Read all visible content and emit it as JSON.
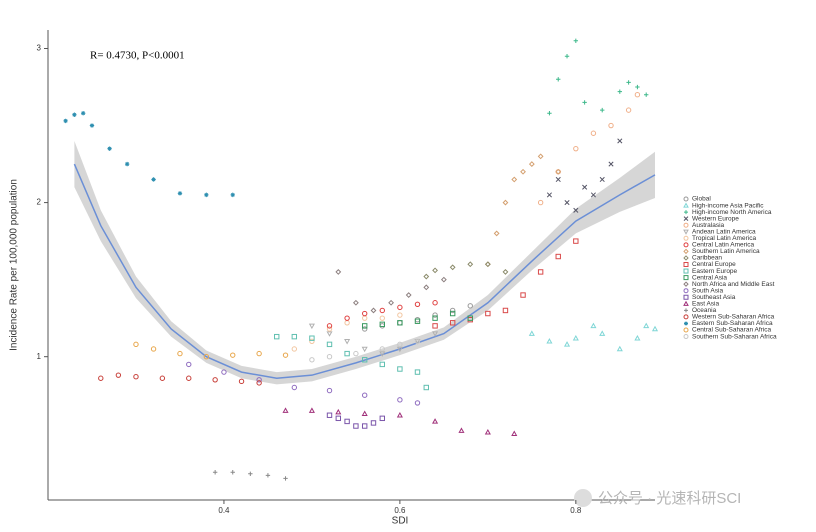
{
  "chart_data": {
    "type": "scatter",
    "annotation": "R= 0.4730, P<0.0001",
    "x_label": "SDI",
    "y_label": "Incidence Rate per 100,000 population",
    "watermark": "公众号 · 光速科研SCI",
    "xlim": [
      0.2,
      0.89
    ],
    "xticks": [
      {
        "value": 0.4,
        "label": "0.4"
      },
      {
        "value": 0.6,
        "label": "0.6"
      },
      {
        "value": 0.8,
        "label": "0.8"
      }
    ],
    "ylim": [
      0.07,
      3.12
    ],
    "yticks": [
      1,
      2,
      3
    ],
    "legend_position": "right",
    "smooth": {
      "color": "#6b8fd6",
      "band_color": "#c8c8c8",
      "x": [
        0.23,
        0.26,
        0.3,
        0.34,
        0.38,
        0.42,
        0.46,
        0.5,
        0.55,
        0.6,
        0.65,
        0.7,
        0.75,
        0.8,
        0.85,
        0.89
      ],
      "values": [
        2.25,
        1.85,
        1.45,
        1.18,
        1.0,
        0.9,
        0.86,
        0.88,
        0.96,
        1.05,
        1.15,
        1.35,
        1.62,
        1.88,
        2.05,
        2.18
      ],
      "lower": [
        2.1,
        1.75,
        1.38,
        1.13,
        0.96,
        0.86,
        0.82,
        0.84,
        0.92,
        1.01,
        1.11,
        1.3,
        1.56,
        1.8,
        1.94,
        2.03
      ],
      "upper": [
        2.4,
        1.95,
        1.52,
        1.23,
        1.04,
        0.94,
        0.9,
        0.92,
        1.0,
        1.09,
        1.19,
        1.4,
        1.68,
        1.96,
        2.16,
        2.33
      ]
    },
    "series": [
      {
        "name": "Global",
        "color": "#999999",
        "marker": "circle",
        "x": [
          0.56,
          0.58,
          0.6,
          0.62,
          0.64,
          0.66,
          0.68
        ],
        "values": [
          1.18,
          1.2,
          1.22,
          1.24,
          1.27,
          1.3,
          1.33
        ]
      },
      {
        "name": "High-income Asia Pacific",
        "color": "#7fd6d6",
        "marker": "triangle",
        "x": [
          0.75,
          0.77,
          0.79,
          0.8,
          0.82,
          0.83,
          0.85,
          0.87,
          0.88,
          0.89
        ],
        "values": [
          1.15,
          1.1,
          1.08,
          1.12,
          1.2,
          1.15,
          1.05,
          1.12,
          1.2,
          1.18
        ]
      },
      {
        "name": "High-income North America",
        "color": "#3cb88a",
        "marker": "plus",
        "x": [
          0.77,
          0.78,
          0.79,
          0.8,
          0.81,
          0.83,
          0.85,
          0.86,
          0.87,
          0.88
        ],
        "values": [
          2.58,
          2.8,
          2.95,
          3.05,
          2.65,
          2.6,
          2.72,
          2.78,
          2.75,
          2.7
        ]
      },
      {
        "name": "Western Europe",
        "color": "#555566",
        "marker": "cross",
        "x": [
          0.77,
          0.78,
          0.79,
          0.8,
          0.81,
          0.82,
          0.83,
          0.84,
          0.85
        ],
        "values": [
          2.05,
          2.15,
          2.0,
          1.95,
          2.1,
          2.05,
          2.15,
          2.25,
          2.4
        ]
      },
      {
        "name": "Australasia",
        "color": "#f0b08a",
        "marker": "circle",
        "x": [
          0.76,
          0.78,
          0.8,
          0.82,
          0.84,
          0.86,
          0.87
        ],
        "values": [
          2.0,
          2.2,
          2.35,
          2.45,
          2.5,
          2.6,
          2.7
        ]
      },
      {
        "name": "Andean Latin America",
        "color": "#b0b0b0",
        "marker": "triangle-down",
        "x": [
          0.5,
          0.52,
          0.54,
          0.56,
          0.58,
          0.6,
          0.62,
          0.64
        ],
        "values": [
          1.2,
          1.15,
          1.1,
          1.05,
          1.02,
          1.05,
          1.1,
          1.15
        ]
      },
      {
        "name": "Tropical Latin America",
        "color": "#f2c6a0",
        "marker": "circle",
        "x": [
          0.48,
          0.5,
          0.52,
          0.54,
          0.56,
          0.58,
          0.6
        ],
        "values": [
          1.05,
          1.1,
          1.18,
          1.22,
          1.25,
          1.25,
          1.27
        ]
      },
      {
        "name": "Central Latin America",
        "color": "#e04040",
        "marker": "circle",
        "x": [
          0.52,
          0.54,
          0.56,
          0.58,
          0.6,
          0.62,
          0.64
        ],
        "values": [
          1.2,
          1.25,
          1.28,
          1.3,
          1.32,
          1.34,
          1.35
        ]
      },
      {
        "name": "Southern Latin America",
        "color": "#d4a070",
        "marker": "diamond",
        "x": [
          0.7,
          0.71,
          0.72,
          0.73,
          0.74,
          0.75,
          0.76,
          0.78
        ],
        "values": [
          1.6,
          1.8,
          2.0,
          2.15,
          2.2,
          2.25,
          2.3,
          2.2
        ]
      },
      {
        "name": "Caribbean",
        "color": "#8a8a6a",
        "marker": "diamond",
        "x": [
          0.63,
          0.64,
          0.66,
          0.68,
          0.7,
          0.72
        ],
        "values": [
          1.52,
          1.56,
          1.58,
          1.6,
          1.6,
          1.55
        ]
      },
      {
        "name": "Central Europe",
        "color": "#d94a4a",
        "marker": "square",
        "x": [
          0.64,
          0.66,
          0.68,
          0.7,
          0.72,
          0.74,
          0.76,
          0.78,
          0.8
        ],
        "values": [
          1.2,
          1.22,
          1.24,
          1.28,
          1.3,
          1.4,
          1.55,
          1.65,
          1.75
        ]
      },
      {
        "name": "Eastern Europe",
        "color": "#5fbfb0",
        "marker": "square",
        "x": [
          0.46,
          0.48,
          0.5,
          0.52,
          0.54,
          0.56,
          0.58,
          0.6,
          0.62,
          0.63
        ],
        "values": [
          1.13,
          1.13,
          1.12,
          1.08,
          1.02,
          0.98,
          0.95,
          0.92,
          0.9,
          0.8
        ]
      },
      {
        "name": "Central Asia",
        "color": "#3a9a60",
        "marker": "square",
        "x": [
          0.56,
          0.58,
          0.6,
          0.62,
          0.64,
          0.66,
          0.68
        ],
        "values": [
          1.2,
          1.21,
          1.22,
          1.23,
          1.25,
          1.28,
          1.25
        ]
      },
      {
        "name": "North Africa and Middle East",
        "color": "#8c7f7f",
        "marker": "diamond",
        "x": [
          0.53,
          0.55,
          0.57,
          0.59,
          0.61,
          0.63,
          0.65
        ],
        "values": [
          1.55,
          1.35,
          1.3,
          1.35,
          1.4,
          1.45,
          1.5
        ]
      },
      {
        "name": "South Asia",
        "color": "#8e6bbf",
        "marker": "circle",
        "x": [
          0.36,
          0.4,
          0.44,
          0.48,
          0.52,
          0.56,
          0.6,
          0.62
        ],
        "values": [
          0.95,
          0.9,
          0.85,
          0.8,
          0.78,
          0.75,
          0.72,
          0.7
        ]
      },
      {
        "name": "Southeast Asia",
        "color": "#7a55aa",
        "marker": "square",
        "x": [
          0.52,
          0.53,
          0.54,
          0.55,
          0.56,
          0.57,
          0.58
        ],
        "values": [
          0.62,
          0.6,
          0.58,
          0.55,
          0.55,
          0.57,
          0.6
        ]
      },
      {
        "name": "East Asia",
        "color": "#a0307a",
        "marker": "triangle",
        "x": [
          0.47,
          0.5,
          0.53,
          0.56,
          0.6,
          0.64,
          0.67,
          0.7,
          0.73
        ],
        "values": [
          0.65,
          0.65,
          0.64,
          0.63,
          0.62,
          0.58,
          0.52,
          0.51,
          0.5
        ]
      },
      {
        "name": "Oceania",
        "color": "#888888",
        "marker": "plus",
        "x": [
          0.39,
          0.41,
          0.43,
          0.45,
          0.47
        ],
        "values": [
          0.25,
          0.25,
          0.24,
          0.23,
          0.21
        ]
      },
      {
        "name": "Western Sub-Saharan Africa",
        "color": "#c8403a",
        "marker": "circle",
        "x": [
          0.26,
          0.28,
          0.3,
          0.33,
          0.36,
          0.39,
          0.42,
          0.44
        ],
        "values": [
          0.86,
          0.88,
          0.87,
          0.86,
          0.86,
          0.85,
          0.84,
          0.83
        ]
      },
      {
        "name": "Eastern Sub-Saharan Africa",
        "color": "#2e8fb0",
        "marker": "star",
        "x": [
          0.22,
          0.23,
          0.24,
          0.25,
          0.27,
          0.29,
          0.32,
          0.35,
          0.38,
          0.41
        ],
        "values": [
          2.53,
          2.57,
          2.58,
          2.5,
          2.35,
          2.25,
          2.15,
          2.06,
          2.05,
          2.05
        ]
      },
      {
        "name": "Central Sub-Saharan Africa",
        "color": "#e8a64a",
        "marker": "circle",
        "x": [
          0.3,
          0.32,
          0.35,
          0.38,
          0.41,
          0.44,
          0.47
        ],
        "values": [
          1.08,
          1.05,
          1.02,
          1.0,
          1.01,
          1.02,
          1.01
        ]
      },
      {
        "name": "Southern Sub-Saharan Africa",
        "color": "#c8c8c8",
        "marker": "circle",
        "x": [
          0.5,
          0.52,
          0.55,
          0.58,
          0.6,
          0.62
        ],
        "values": [
          0.98,
          1.0,
          1.02,
          1.05,
          1.08,
          1.1
        ]
      }
    ]
  }
}
